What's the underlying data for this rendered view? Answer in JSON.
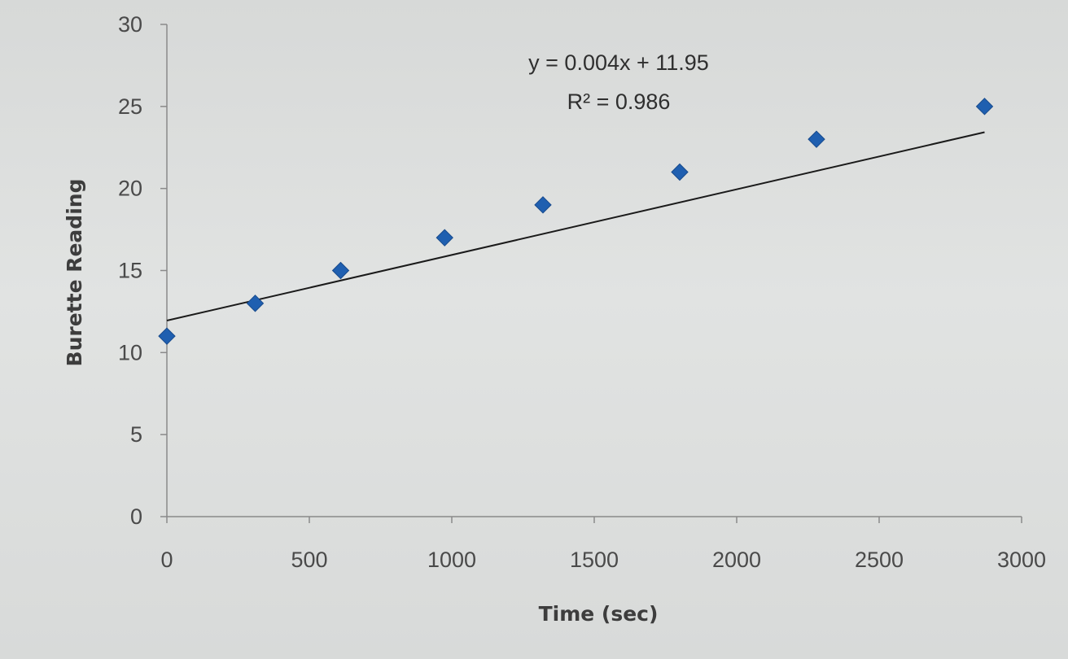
{
  "chart_data": {
    "type": "scatter",
    "title": "",
    "xlabel": "Time (sec)",
    "ylabel": "Burette Reading",
    "xlim": [
      0,
      3000
    ],
    "ylim": [
      0,
      30
    ],
    "xticks": [
      0,
      500,
      1000,
      1500,
      2000,
      2500,
      3000
    ],
    "yticks": [
      0,
      5,
      10,
      15,
      20,
      25,
      30
    ],
    "grid": false,
    "legend": "none",
    "series": [
      {
        "color": "#1f5fb0",
        "marker": "diamond",
        "points": [
          {
            "x": 0,
            "y": 11.0
          },
          {
            "x": 310,
            "y": 13.0
          },
          {
            "x": 610,
            "y": 15.0
          },
          {
            "x": 975,
            "y": 17.0
          },
          {
            "x": 1320,
            "y": 19.0
          },
          {
            "x": 1800,
            "y": 21.0
          },
          {
            "x": 2280,
            "y": 23.0
          },
          {
            "x": 2870,
            "y": 25.0
          }
        ]
      }
    ],
    "trendline": {
      "type": "linear",
      "slope": 0.004,
      "intercept": 11.95,
      "x_range": [
        0,
        2870
      ],
      "color": "#1a1a1a",
      "equation_label": "y = 0.004x + 11.95",
      "r2_label": "R² = 0.986"
    }
  }
}
